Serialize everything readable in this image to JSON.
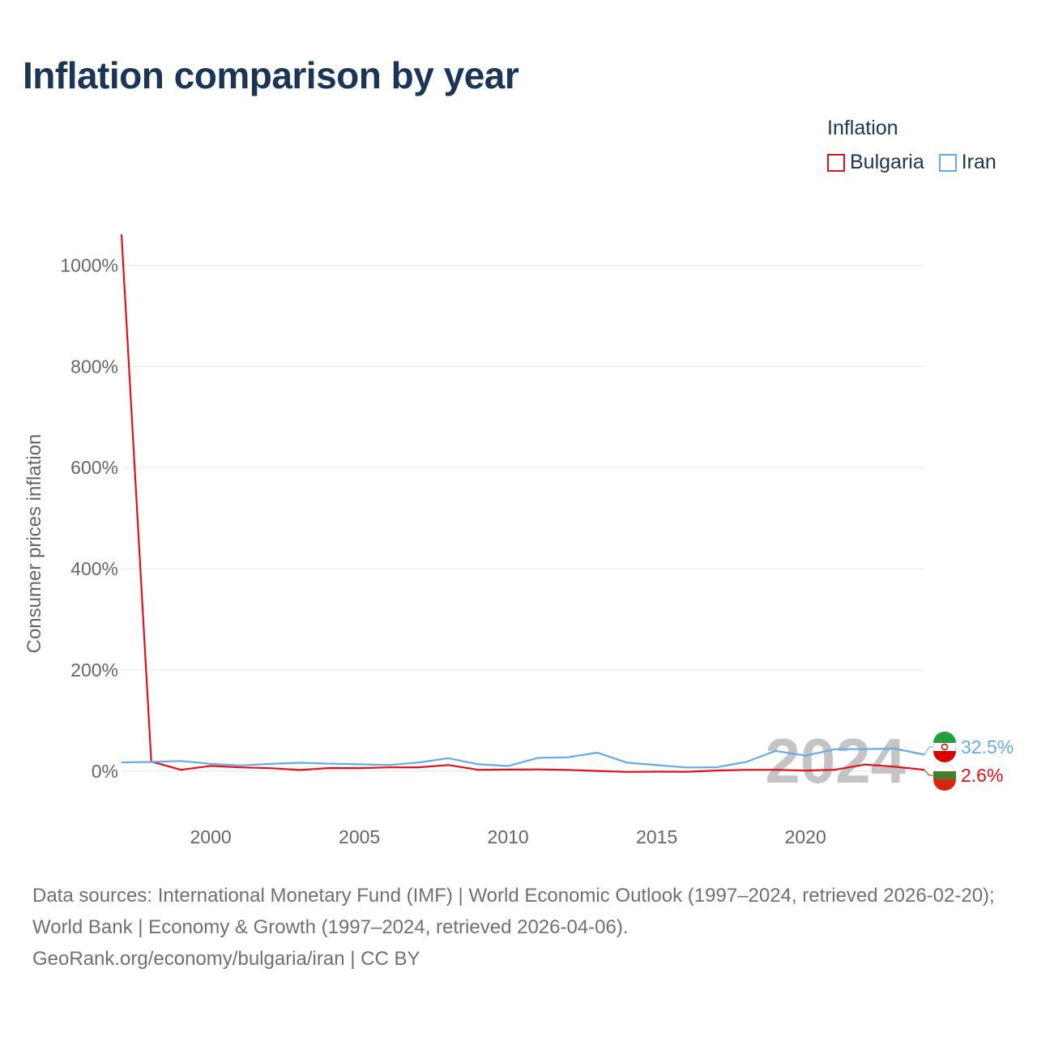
{
  "title": "Inflation comparison by year",
  "legend": {
    "title": "Inflation",
    "items": [
      {
        "label": "Bulgaria",
        "color": "#e3101c"
      },
      {
        "label": "Iran",
        "color": "#66aae8"
      }
    ]
  },
  "chart_data": {
    "type": "line",
    "title": "Inflation comparison by year",
    "xlabel": "",
    "ylabel": "Consumer prices inflation",
    "x": [
      1997,
      1998,
      1999,
      2000,
      2001,
      2002,
      2003,
      2004,
      2005,
      2006,
      2007,
      2008,
      2009,
      2010,
      2011,
      2012,
      2013,
      2014,
      2015,
      2016,
      2017,
      2018,
      2019,
      2020,
      2021,
      2022,
      2023,
      2024
    ],
    "xlim": [
      1997,
      2024
    ],
    "x_ticks": [
      2000,
      2005,
      2010,
      2015,
      2020
    ],
    "ylim": [
      -90,
      1060
    ],
    "y_ticks": [
      0,
      200,
      400,
      600,
      800,
      1000
    ],
    "y_tick_labels": [
      "0%",
      "200%",
      "400%",
      "600%",
      "800%",
      "1000%"
    ],
    "grid": true,
    "year_watermark": "2024",
    "series": [
      {
        "name": "Bulgaria",
        "color": "#e3101c",
        "values": [
          1061.2,
          18.7,
          2.6,
          10.3,
          7.4,
          5.8,
          2.3,
          6.1,
          6.0,
          7.4,
          7.6,
          12.0,
          2.5,
          3.0,
          3.4,
          2.4,
          0.4,
          -1.6,
          -1.1,
          -1.3,
          1.2,
          2.6,
          2.5,
          1.2,
          2.8,
          13.0,
          8.6,
          2.6
        ],
        "end_label": "2.6%"
      },
      {
        "name": "Iran",
        "color": "#66aae8",
        "values": [
          17.3,
          18.1,
          20.1,
          14.5,
          11.3,
          14.3,
          16.5,
          14.8,
          13.4,
          11.9,
          17.2,
          25.5,
          13.5,
          10.1,
          26.1,
          27.3,
          36.6,
          16.6,
          11.9,
          7.2,
          7.5,
          18.0,
          39.9,
          30.6,
          43.4,
          43.5,
          44.6,
          32.5
        ],
        "end_label": "32.5%"
      }
    ]
  },
  "footer": {
    "source": "Data sources: International Monetary Fund (IMF) | World Economic Outlook (1997–2024, retrieved 2026-02-20); World Bank | Economy & Growth (1997–2024, retrieved 2026-04-06).",
    "url": "GeoRank.org/economy/bulgaria/iran | CC BY"
  }
}
